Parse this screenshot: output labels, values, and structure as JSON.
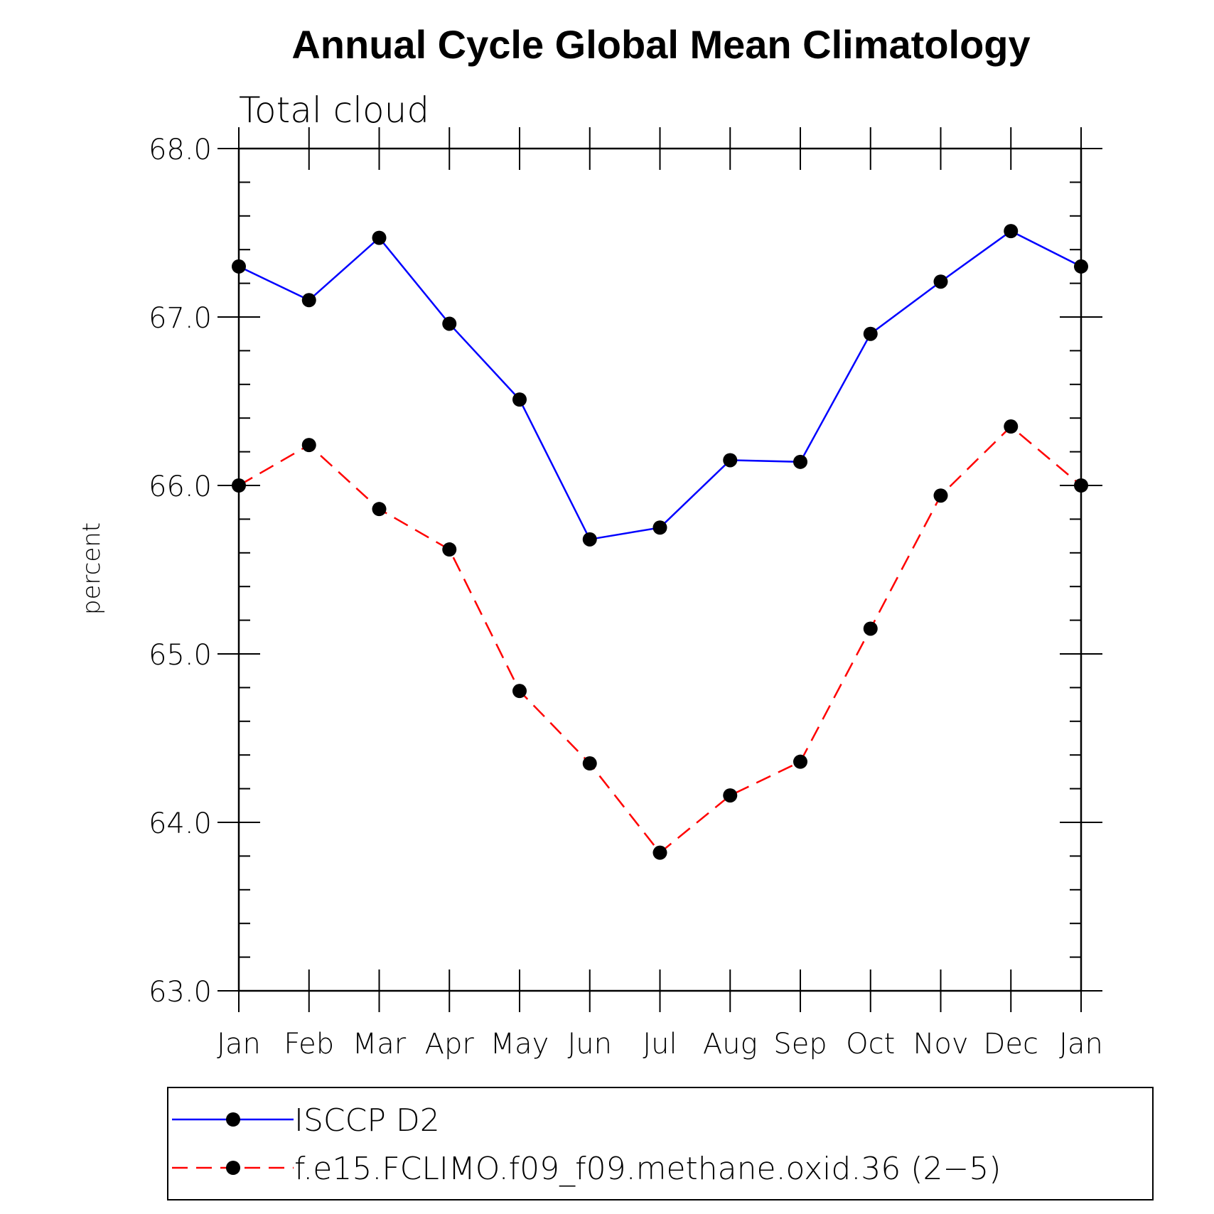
{
  "chart_data": {
    "type": "line",
    "title": "Annual Cycle Global Mean Climatology",
    "subtitle": "Total cloud",
    "ylabel": "percent",
    "xlabel": "",
    "categories": [
      "Jan",
      "Feb",
      "Mar",
      "Apr",
      "May",
      "Jun",
      "Jul",
      "Aug",
      "Sep",
      "Oct",
      "Nov",
      "Dec",
      "Jan"
    ],
    "ylim": [
      63.0,
      68.0
    ],
    "yticks": [
      "63.0",
      "64.0",
      "65.0",
      "66.0",
      "67.0",
      "68.0"
    ],
    "grid": false,
    "legend_position": "bottom",
    "series": [
      {
        "name": "ISCCP D2",
        "color": "#0000ff",
        "dash": "solid",
        "values": [
          67.3,
          67.1,
          67.47,
          66.96,
          66.51,
          65.68,
          65.75,
          66.15,
          66.14,
          66.9,
          67.21,
          67.51,
          67.3
        ]
      },
      {
        "name": "f.e15.FCLIMO.f09_f09.methane.oxid.36 (2−5)",
        "color": "#ff0000",
        "dash": "dashed",
        "values": [
          66.0,
          66.24,
          65.86,
          65.62,
          64.78,
          64.35,
          63.82,
          64.16,
          64.36,
          65.15,
          65.94,
          66.35,
          66.0
        ]
      }
    ]
  }
}
